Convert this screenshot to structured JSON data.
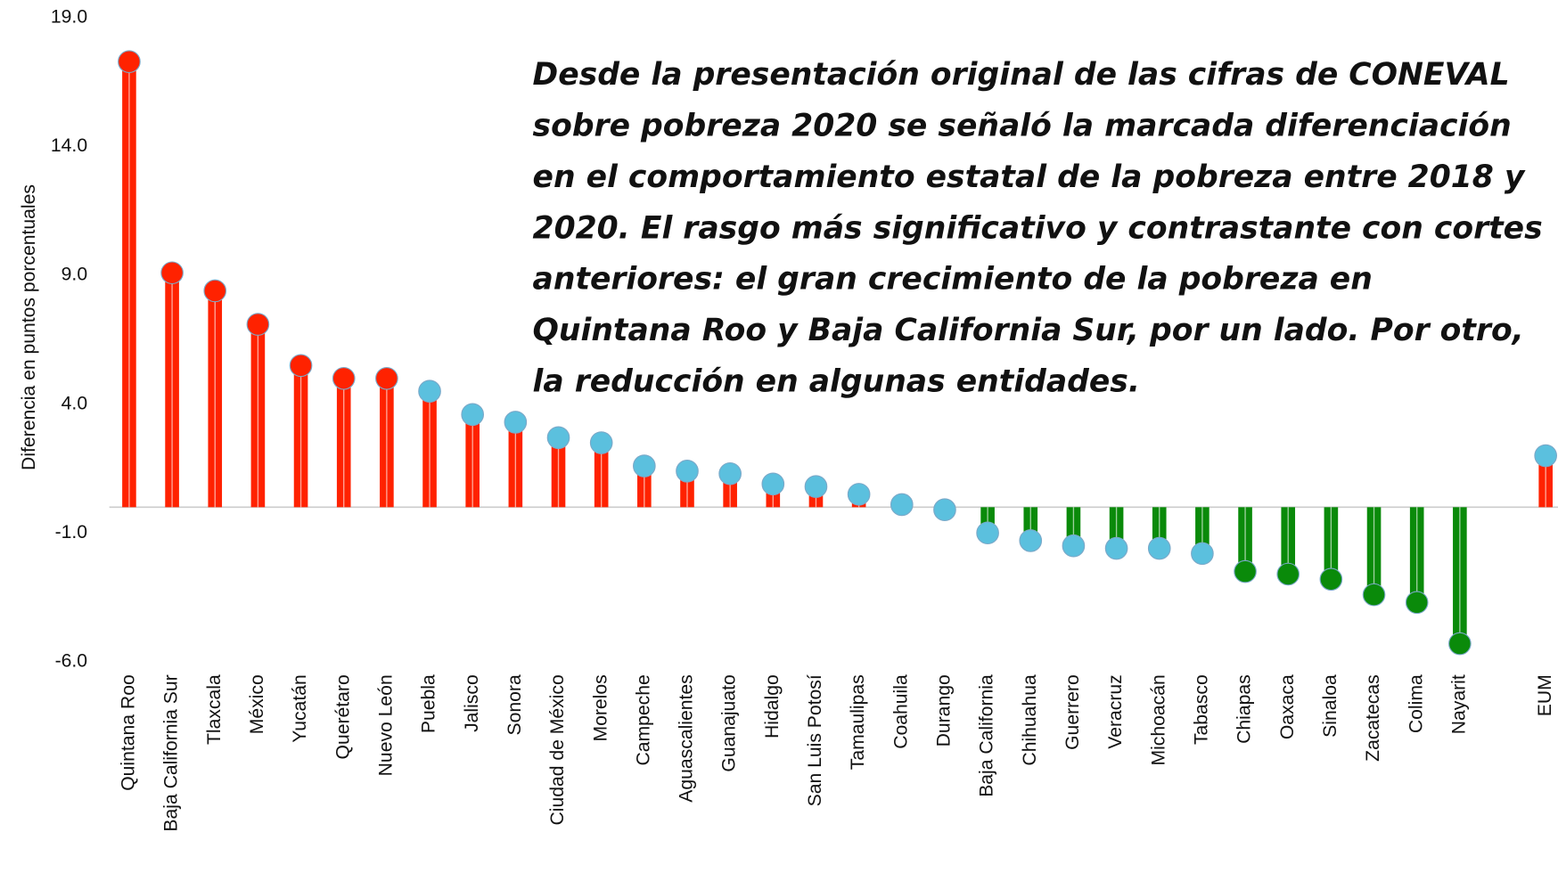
{
  "chart_data": {
    "type": "lollipop",
    "ylabel": "Diferencia en puntos porcentuales",
    "annotation": [
      "Desde la presentación original de las cifras de CONEVAL",
      "sobre pobreza 2020 se señaló la marcada diferenciación",
      "en el comportamiento estatal de la pobreza entre 2018 y",
      "2020. El rasgo más significativo y contrastante con cortes",
      "anteriores: el gran crecimiento de la pobreza en",
      "Quintana Roo y Baja California Sur, por un lado. Por otro,",
      "la reducción en algunas entidades."
    ],
    "categories": [
      "Quintana Roo",
      "Baja California Sur",
      "Tlaxcala",
      "México",
      "Yucatán",
      "Querétaro",
      "Nuevo León",
      "Puebla",
      "Jalisco",
      "Sonora",
      "Ciudad de México",
      "Morelos",
      "Campeche",
      "Aguascalientes",
      "Guanajuato",
      "Hidalgo",
      "San Luis Potosí",
      "Tamaulipas",
      "Coahuila",
      "Durango",
      "Baja California",
      "Chihuahua",
      "Guerrero",
      "Veracruz",
      "Michoacán",
      "Tabasco",
      "Chiapas",
      "Oaxaca",
      "Sinaloa",
      "Zacatecas",
      "Colima",
      "Nayarit",
      "EUM"
    ],
    "values": [
      17.3,
      9.1,
      8.4,
      7.1,
      5.5,
      5.0,
      5.0,
      4.5,
      3.6,
      3.3,
      2.7,
      2.5,
      1.6,
      1.4,
      1.3,
      0.9,
      0.8,
      0.5,
      0.1,
      -0.1,
      -1.0,
      -1.3,
      -1.5,
      -1.6,
      -1.6,
      -1.8,
      -2.5,
      -2.6,
      -2.8,
      -3.4,
      -3.7,
      -5.3,
      2.0
    ],
    "dot_colors": [
      "#ff2200",
      "#ff2200",
      "#ff2200",
      "#ff2200",
      "#ff2200",
      "#ff2200",
      "#ff2200",
      "#5bc0de",
      "#5bc0de",
      "#5bc0de",
      "#5bc0de",
      "#5bc0de",
      "#5bc0de",
      "#5bc0de",
      "#5bc0de",
      "#5bc0de",
      "#5bc0de",
      "#5bc0de",
      "#5bc0de",
      "#5bc0de",
      "#5bc0de",
      "#5bc0de",
      "#5bc0de",
      "#5bc0de",
      "#5bc0de",
      "#5bc0de",
      "#0a8a0a",
      "#0a8a0a",
      "#0a8a0a",
      "#0a8a0a",
      "#0a8a0a",
      "#0a8a0a",
      "#5bc0de"
    ],
    "positive_color": "#ff2200",
    "negative_color": "#0a8a0a",
    "ylim": [
      -6,
      19
    ],
    "yticks": [
      {
        "value": -6,
        "label": "-6.0"
      },
      {
        "value": -1,
        "label": "-1.0"
      },
      {
        "value": 4,
        "label": "4.0"
      },
      {
        "value": 9,
        "label": "9.0"
      },
      {
        "value": 14,
        "label": "14.0"
      },
      {
        "value": 19,
        "label": "19.0"
      }
    ]
  }
}
